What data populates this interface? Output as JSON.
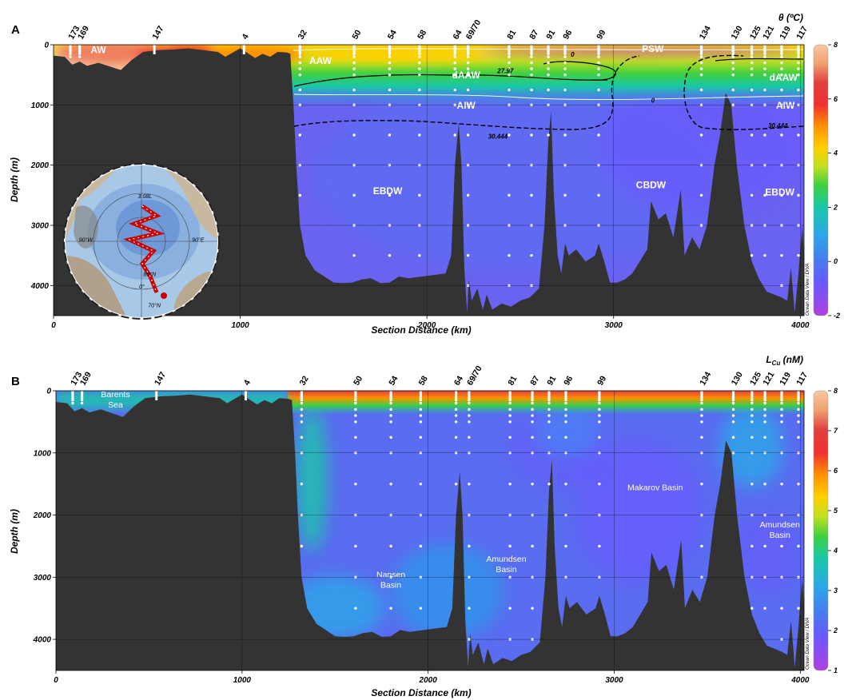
{
  "chart_data": [
    {
      "type": "heatmap",
      "panel_label": "A",
      "parameter": "θ (ºC)",
      "xlabel": "Section Distance (km)",
      "ylabel": "Depth (m)",
      "xlim": [
        0,
        4020
      ],
      "ylim": [
        4500,
        0
      ],
      "xticks": [
        0,
        1000,
        2000,
        3000,
        4000
      ],
      "yticks": [
        0,
        1000,
        2000,
        3000,
        4000
      ],
      "colorbar": {
        "range": [
          -2,
          8
        ],
        "ticks": [
          -2,
          0,
          2,
          4,
          6,
          8
        ]
      },
      "credit": "Ocean Data View / DIVA",
      "stations": [
        {
          "label": "173",
          "x": 90
        },
        {
          "label": "169",
          "x": 140
        },
        {
          "label": "147",
          "x": 540
        },
        {
          "label": "4",
          "x": 1020
        },
        {
          "label": "32",
          "x": 1320
        },
        {
          "label": "50",
          "x": 1610
        },
        {
          "label": "54",
          "x": 1800
        },
        {
          "label": "58",
          "x": 1960
        },
        {
          "label": "64",
          "x": 2150
        },
        {
          "label": "69/70",
          "x": 2220
        },
        {
          "label": "81",
          "x": 2440
        },
        {
          "label": "87",
          "x": 2560
        },
        {
          "label": "91",
          "x": 2650
        },
        {
          "label": "96",
          "x": 2740
        },
        {
          "label": "99",
          "x": 2920
        },
        {
          "label": "134",
          "x": 3470
        },
        {
          "label": "130",
          "x": 3640
        },
        {
          "label": "125",
          "x": 3740
        },
        {
          "label": "121",
          "x": 3810
        },
        {
          "label": "119",
          "x": 3900
        },
        {
          "label": "117",
          "x": 3990
        }
      ],
      "water_masses": [
        {
          "label": "AW",
          "x": 240,
          "depth": 140
        },
        {
          "label": "AAW",
          "x": 1430,
          "depth": 320
        },
        {
          "label": "PSW",
          "x": 3210,
          "depth": 120
        },
        {
          "label": "dAAW",
          "x": 2210,
          "depth": 560
        },
        {
          "label": "dAAW",
          "x": 3910,
          "depth": 600
        },
        {
          "label": "AIW",
          "x": 2210,
          "depth": 1060
        },
        {
          "label": "AIW",
          "x": 3920,
          "depth": 1060
        },
        {
          "label": "EBDW",
          "x": 1790,
          "depth": 2480
        },
        {
          "label": "CBDW",
          "x": 3200,
          "depth": 2380
        },
        {
          "label": "EBDW",
          "x": 3890,
          "depth": 2500
        }
      ],
      "contours": [
        {
          "label": "27.97",
          "x": 2420,
          "depth": 470
        },
        {
          "label": "30.444",
          "x": 2380,
          "depth": 1560
        },
        {
          "label": "30.444",
          "x": 3880,
          "depth": 1380
        },
        {
          "label": "0",
          "x": 2780,
          "depth": 200
        },
        {
          "label": "0",
          "x": 3210,
          "depth": 960
        }
      ],
      "inset_map": {
        "labels": [
          {
            "text": "3.08L",
            "x": 0.52,
            "y": 0.22
          },
          {
            "text": "90°W",
            "x": 0.14,
            "y": 0.5
          },
          {
            "text": "90°E",
            "x": 0.86,
            "y": 0.5
          },
          {
            "text": "80°N",
            "x": 0.55,
            "y": 0.72
          },
          {
            "text": "0°",
            "x": 0.5,
            "y": 0.8
          },
          {
            "text": "70°N",
            "x": 0.58,
            "y": 0.92
          }
        ]
      }
    },
    {
      "type": "heatmap",
      "panel_label": "B",
      "parameter": "L_Cu (nM)",
      "xlabel": "Section Distance (km)",
      "ylabel": "Depth (m)",
      "xlim": [
        0,
        4020
      ],
      "ylim": [
        4500,
        0
      ],
      "xticks": [
        0,
        1000,
        2000,
        3000,
        4000
      ],
      "yticks": [
        0,
        1000,
        2000,
        3000,
        4000
      ],
      "colorbar": {
        "range": [
          1,
          8
        ],
        "ticks": [
          1,
          2,
          3,
          4,
          5,
          6,
          7,
          8
        ]
      },
      "credit": "Ocean Data View / DIVA",
      "stations": [
        {
          "label": "173",
          "x": 90
        },
        {
          "label": "169",
          "x": 140
        },
        {
          "label": "147",
          "x": 540
        },
        {
          "label": "4",
          "x": 1020
        },
        {
          "label": "32",
          "x": 1320
        },
        {
          "label": "50",
          "x": 1610
        },
        {
          "label": "54",
          "x": 1800
        },
        {
          "label": "58",
          "x": 1960
        },
        {
          "label": "64",
          "x": 2150
        },
        {
          "label": "69/70",
          "x": 2220
        },
        {
          "label": "81",
          "x": 2440
        },
        {
          "label": "87",
          "x": 2560
        },
        {
          "label": "91",
          "x": 2650
        },
        {
          "label": "96",
          "x": 2740
        },
        {
          "label": "99",
          "x": 2920
        },
        {
          "label": "134",
          "x": 3470
        },
        {
          "label": "130",
          "x": 3640
        },
        {
          "label": "125",
          "x": 3740
        },
        {
          "label": "121",
          "x": 3810
        },
        {
          "label": "119",
          "x": 3900
        },
        {
          "label": "117",
          "x": 3990
        }
      ],
      "basins": [
        {
          "lines": [
            "Barents",
            "Sea"
          ],
          "x": 320,
          "depth": 100
        },
        {
          "lines": [
            "Nansen",
            "Basin"
          ],
          "x": 1800,
          "depth": 3000
        },
        {
          "lines": [
            "Amundsen",
            "Basin"
          ],
          "x": 2420,
          "depth": 2750
        },
        {
          "lines": [
            "Makarov Basin"
          ],
          "x": 3220,
          "depth": 1600
        },
        {
          "lines": [
            "Amundsen",
            "Basin"
          ],
          "x": 3890,
          "depth": 2200
        }
      ]
    }
  ],
  "bathymetry": [
    [
      0,
      180
    ],
    [
      60,
      200
    ],
    [
      100,
      330
    ],
    [
      140,
      280
    ],
    [
      180,
      350
    ],
    [
      240,
      300
    ],
    [
      300,
      360
    ],
    [
      360,
      420
    ],
    [
      420,
      250
    ],
    [
      480,
      120
    ],
    [
      560,
      90
    ],
    [
      640,
      80
    ],
    [
      720,
      60
    ],
    [
      800,
      90
    ],
    [
      880,
      120
    ],
    [
      920,
      200
    ],
    [
      960,
      130
    ],
    [
      1000,
      60
    ],
    [
      1040,
      140
    ],
    [
      1080,
      220
    ],
    [
      1120,
      150
    ],
    [
      1160,
      200
    ],
    [
      1200,
      120
    ],
    [
      1250,
      130
    ],
    [
      1268,
      150
    ],
    [
      1285,
      1000
    ],
    [
      1300,
      2000
    ],
    [
      1320,
      3000
    ],
    [
      1350,
      3500
    ],
    [
      1400,
      3750
    ],
    [
      1450,
      3850
    ],
    [
      1500,
      3950
    ],
    [
      1550,
      3960
    ],
    [
      1600,
      3950
    ],
    [
      1650,
      3900
    ],
    [
      1700,
      3880
    ],
    [
      1750,
      3960
    ],
    [
      1800,
      3950
    ],
    [
      1850,
      3850
    ],
    [
      1900,
      3880
    ],
    [
      1950,
      3860
    ],
    [
      2000,
      3840
    ],
    [
      2050,
      3820
    ],
    [
      2100,
      3800
    ],
    [
      2130,
      3500
    ],
    [
      2150,
      2000
    ],
    [
      2170,
      1300
    ],
    [
      2185,
      2000
    ],
    [
      2200,
      3700
    ],
    [
      2215,
      4450
    ],
    [
      2225,
      3900
    ],
    [
      2240,
      4250
    ],
    [
      2270,
      4050
    ],
    [
      2300,
      4400
    ],
    [
      2320,
      4150
    ],
    [
      2350,
      4400
    ],
    [
      2400,
      4300
    ],
    [
      2450,
      4350
    ],
    [
      2500,
      4250
    ],
    [
      2550,
      4200
    ],
    [
      2600,
      4050
    ],
    [
      2630,
      3000
    ],
    [
      2650,
      1600
    ],
    [
      2665,
      1100
    ],
    [
      2680,
      2500
    ],
    [
      2700,
      3500
    ],
    [
      2720,
      3800
    ],
    [
      2740,
      3300
    ],
    [
      2760,
      3500
    ],
    [
      2800,
      3400
    ],
    [
      2850,
      3600
    ],
    [
      2900,
      3500
    ],
    [
      2920,
      3300
    ],
    [
      2950,
      3600
    ],
    [
      2980,
      3950
    ],
    [
      3020,
      3950
    ],
    [
      3060,
      3900
    ],
    [
      3100,
      3800
    ],
    [
      3140,
      3600
    ],
    [
      3180,
      3400
    ],
    [
      3200,
      2600
    ],
    [
      3240,
      2900
    ],
    [
      3280,
      2800
    ],
    [
      3320,
      3200
    ],
    [
      3360,
      2400
    ],
    [
      3380,
      3500
    ],
    [
      3420,
      3200
    ],
    [
      3460,
      3400
    ],
    [
      3500,
      3000
    ],
    [
      3540,
      2000
    ],
    [
      3570,
      1500
    ],
    [
      3600,
      800
    ],
    [
      3630,
      1000
    ],
    [
      3660,
      2000
    ],
    [
      3700,
      3000
    ],
    [
      3740,
      3600
    ],
    [
      3780,
      3900
    ],
    [
      3820,
      4100
    ],
    [
      3860,
      4150
    ],
    [
      3900,
      4200
    ],
    [
      3930,
      4250
    ],
    [
      3950,
      3700
    ],
    [
      3970,
      4450
    ],
    [
      3990,
      3800
    ],
    [
      4010,
      3000
    ],
    [
      4020,
      3500
    ]
  ]
}
